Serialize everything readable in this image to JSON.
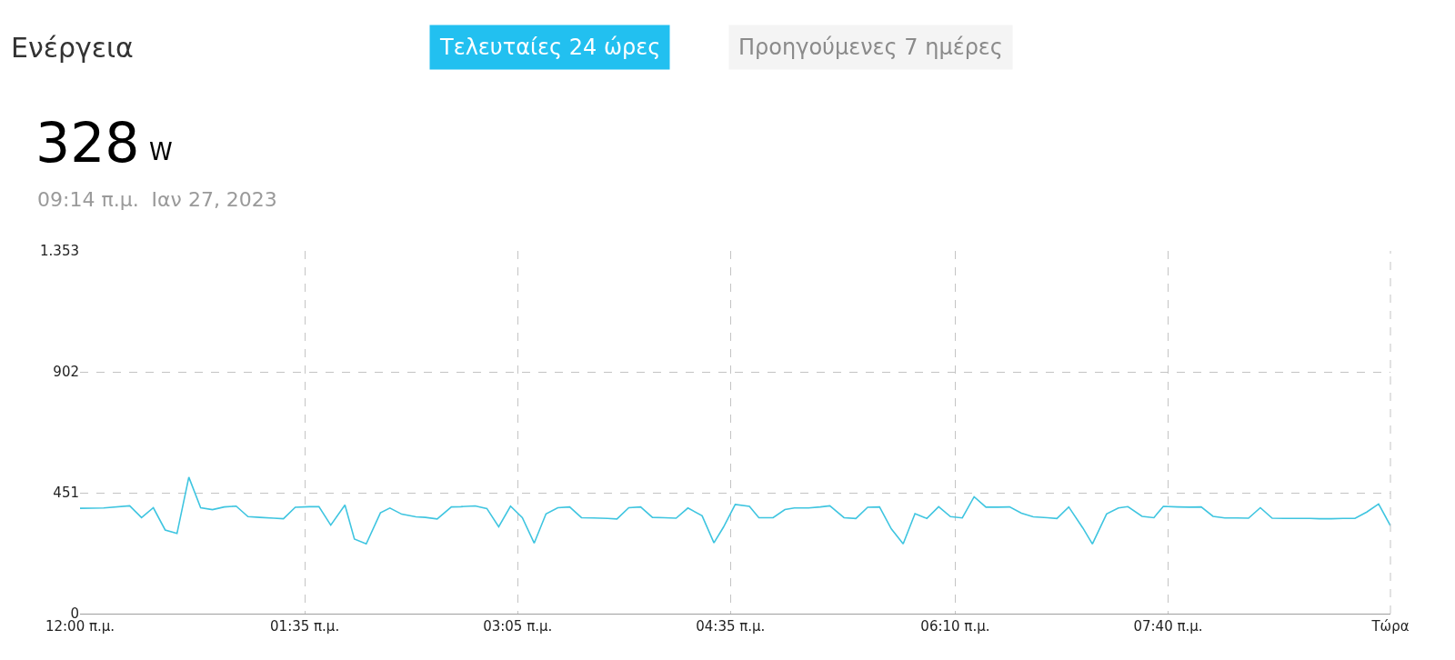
{
  "chart_data": {
    "type": "line",
    "title": "Ενέργεια",
    "annotations": [
      "Τελευταίες 24 ώρες",
      "Προηγούμενες 7 ημέρες",
      "328",
      "W",
      "09:14 π.μ.  Ιαν 27, 2023"
    ],
    "x": [
      "2023-01-27T00:00",
      "2023-01-27T00:10",
      "2023-01-27T00:21",
      "2023-01-27T00:26",
      "2023-01-27T00:31",
      "2023-01-27T00:36",
      "2023-01-27T00:41",
      "2023-01-27T00:46",
      "2023-01-27T00:51",
      "2023-01-27T00:56",
      "2023-01-27T01:01",
      "2023-01-27T01:06",
      "2023-01-27T01:11",
      "2023-01-27T01:16",
      "2023-01-27T01:22",
      "2023-01-27T01:26",
      "2023-01-27T01:31",
      "2023-01-27T01:37",
      "2023-01-27T01:41",
      "2023-01-27T01:46",
      "2023-01-27T01:52",
      "2023-01-27T01:56",
      "2023-01-27T02:01",
      "2023-01-27T02:07",
      "2023-01-27T02:11",
      "2023-01-27T02:16",
      "2023-01-27T02:22",
      "2023-01-27T02:26",
      "2023-01-27T02:31",
      "2023-01-27T02:37",
      "2023-01-27T02:41",
      "2023-01-27T02:47",
      "2023-01-27T02:52",
      "2023-01-27T02:57",
      "2023-01-27T03:02",
      "2023-01-27T03:07",
      "2023-01-27T03:12",
      "2023-01-27T03:17",
      "2023-01-27T03:22",
      "2023-01-27T03:27",
      "2023-01-27T03:32",
      "2023-01-27T03:37",
      "2023-01-27T03:43",
      "2023-01-27T03:47",
      "2023-01-27T03:52",
      "2023-01-27T03:57",
      "2023-01-27T04:02",
      "2023-01-27T04:07",
      "2023-01-27T04:12",
      "2023-01-27T04:17",
      "2023-01-27T04:23",
      "2023-01-27T04:28",
      "2023-01-27T04:32",
      "2023-01-27T04:37",
      "2023-01-27T04:43",
      "2023-01-27T04:47",
      "2023-01-27T04:53",
      "2023-01-27T04:58",
      "2023-01-27T05:02",
      "2023-01-27T05:08",
      "2023-01-27T05:13",
      "2023-01-27T05:17",
      "2023-01-27T05:23",
      "2023-01-27T05:28",
      "2023-01-27T05:33",
      "2023-01-27T05:38",
      "2023-01-27T05:43",
      "2023-01-27T05:48",
      "2023-01-27T05:53",
      "2023-01-27T05:58",
      "2023-01-27T06:03",
      "2023-01-27T06:08",
      "2023-01-27T06:13",
      "2023-01-27T06:18",
      "2023-01-27T06:23",
      "2023-01-27T06:28",
      "2023-01-27T06:33",
      "2023-01-27T06:38",
      "2023-01-27T06:43",
      "2023-01-27T06:49",
      "2023-01-27T06:53",
      "2023-01-27T06:58",
      "2023-01-27T07:04",
      "2023-01-27T07:08",
      "2023-01-27T07:14",
      "2023-01-27T07:19",
      "2023-01-27T07:23",
      "2023-01-27T07:29",
      "2023-01-27T07:34",
      "2023-01-27T07:38",
      "2023-01-27T07:44",
      "2023-01-27T07:49",
      "2023-01-27T07:54",
      "2023-01-27T07:59",
      "2023-01-27T08:04",
      "2023-01-27T08:09",
      "2023-01-27T08:14",
      "2023-01-27T08:19",
      "2023-01-27T08:24",
      "2023-01-27T08:29",
      "2023-01-27T08:34",
      "2023-01-27T08:40",
      "2023-01-27T08:44",
      "2023-01-27T08:49",
      "2023-01-27T08:54",
      "2023-01-27T08:59",
      "2023-01-27T09:04",
      "2023-01-27T09:09",
      "2023-01-27T09:14"
    ],
    "series": [
      {
        "color": "#3fc5e0",
        "values": [
          393,
          394,
          402,
          358,
          395,
          312,
          299,
          509,
          395,
          388,
          398,
          401,
          362,
          359,
          356,
          354,
          397,
          399,
          399,
          330,
          405,
          278,
          260,
          376,
          394,
          371,
          361,
          359,
          353,
          398,
          399,
          402,
          392,
          324,
          401,
          358,
          263,
          372,
          395,
          398,
          358,
          357,
          355,
          353,
          395,
          398,
          359,
          358,
          356,
          394,
          365,
          264,
          322,
          407,
          400,
          358,
          358,
          388,
          394,
          394,
          398,
          402,
          358,
          355,
          397,
          398,
          316,
          260,
          373,
          355,
          399,
          362,
          357,
          436,
          397,
          397,
          398,
          375,
          361,
          358,
          355,
          398,
          319,
          260,
          372,
          394,
          399,
          363,
          358,
          400,
          398,
          397,
          398,
          363,
          357,
          357,
          356,
          395,
          356,
          355,
          355,
          355,
          354,
          354,
          355,
          355,
          379,
          409,
          328
        ]
      }
    ],
    "xlim": [
      "2023-01-27T00:00",
      "2023-01-27T09:14"
    ],
    "xticks": [
      {
        "value": "2023-01-27T00:00",
        "label": "12:00 π.μ."
      },
      {
        "value": "2023-01-27T01:35",
        "label": "01:35 π.μ."
      },
      {
        "value": "2023-01-27T03:05",
        "label": "03:05 π.μ."
      },
      {
        "value": "2023-01-27T04:35",
        "label": "04:35 π.μ."
      },
      {
        "value": "2023-01-27T06:10",
        "label": "06:10 π.μ."
      },
      {
        "value": "2023-01-27T07:40",
        "label": "07:40 π.μ."
      },
      {
        "value": "2023-01-27T09:14",
        "label": "Τώρα"
      }
    ],
    "ylim": [
      0,
      1353
    ],
    "yticks": [
      0,
      451,
      902,
      {
        "value": 1353,
        "label": "1.353"
      }
    ],
    "grid": true,
    "marker": "none",
    "line_style": "solid"
  }
}
